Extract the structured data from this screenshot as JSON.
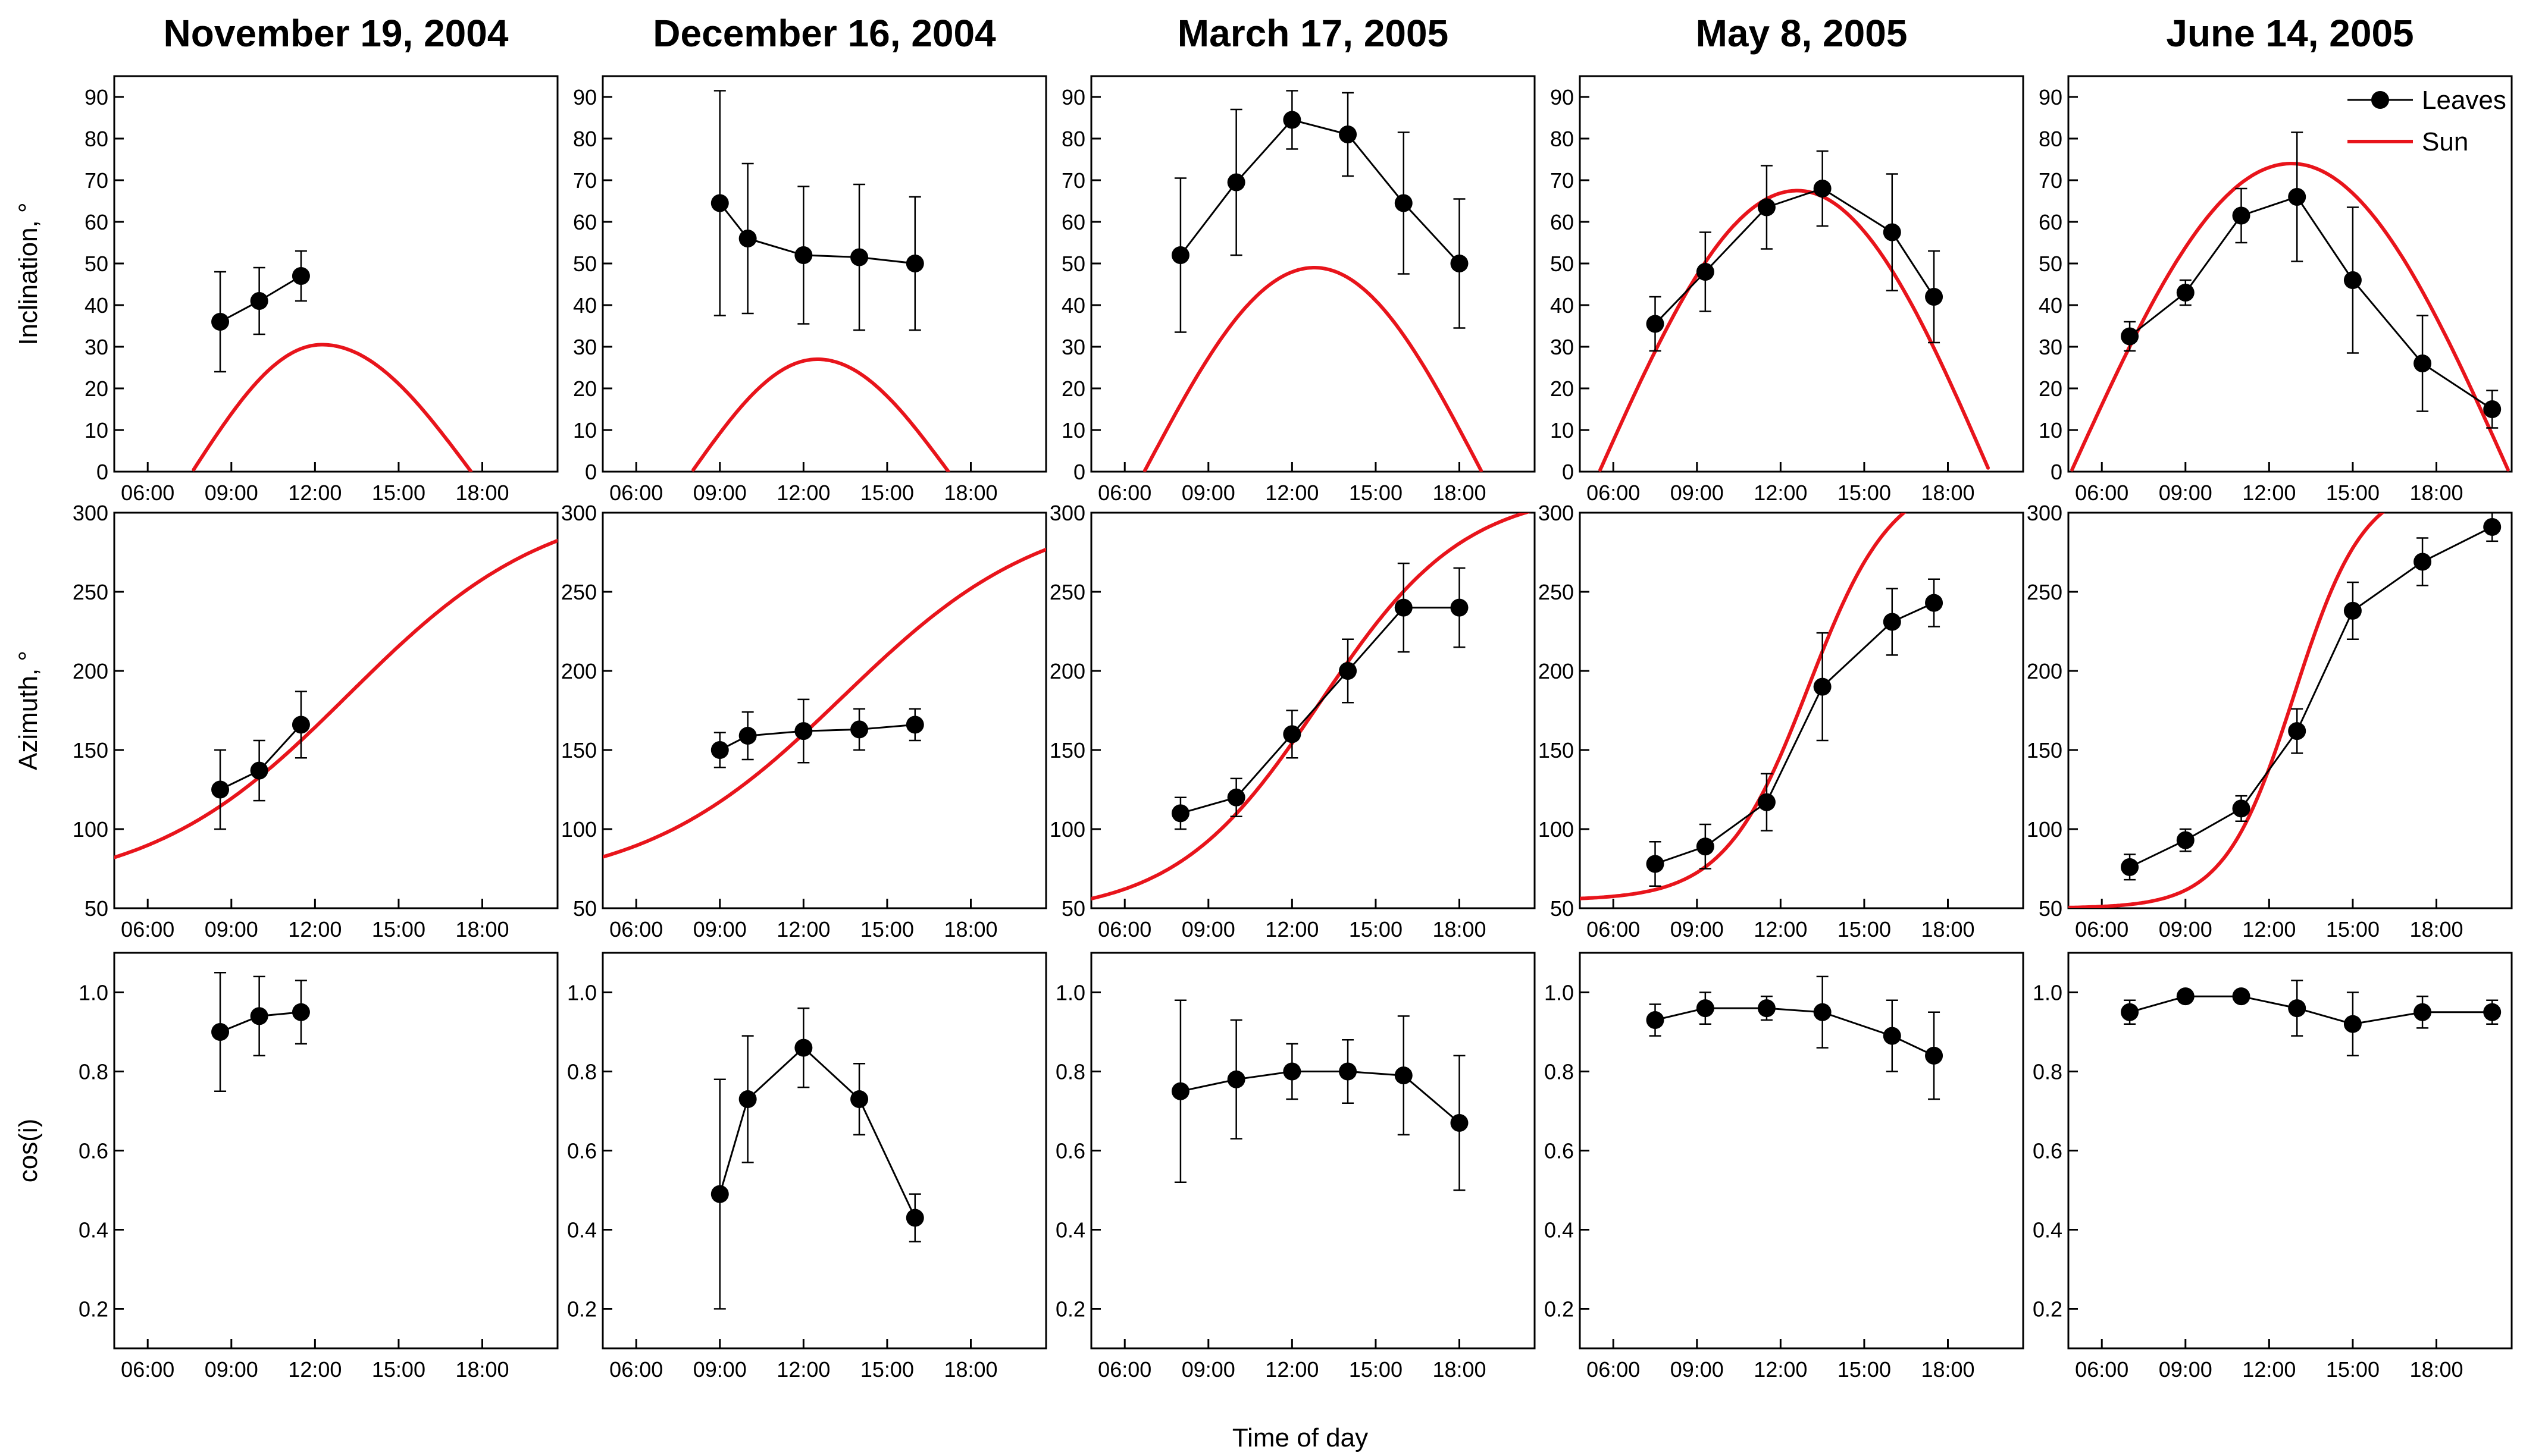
{
  "figure": {
    "xlabel": "Time of day",
    "row_ylabels": [
      "Inclination, °",
      "Azimuth, °",
      "cos(i)"
    ],
    "columns": [
      "November 19, 2004",
      "December 16, 2004",
      "March 17, 2005",
      "May 8, 2005",
      "June 14, 2005"
    ],
    "legend": [
      {
        "label": "Leaves",
        "color": "#000000",
        "marker": "filled-circle"
      },
      {
        "label": "Sun",
        "color": "#e8141b",
        "marker": "none"
      }
    ],
    "x_tick_labels": [
      "06:00",
      "09:00",
      "12:00",
      "15:00",
      "18:00"
    ],
    "colors": {
      "leaves": "#000000",
      "sun": "#e8141b"
    }
  },
  "chart_data": [
    {
      "type": "line",
      "title": "November 19, 2004",
      "panels": [
        {
          "ylabel": "Inclination, °",
          "ylim": [
            0,
            95
          ],
          "yticks": [
            0,
            10,
            20,
            30,
            40,
            50,
            60,
            70,
            80,
            90
          ],
          "xlim": [
            4.8,
            20.7
          ],
          "xticks": [
            6,
            9,
            12,
            15,
            18
          ],
          "leaves": {
            "x": [
              8.6,
              10.0,
              11.5
            ],
            "y": [
              36,
              41,
              47
            ],
            "err": [
              12,
              8,
              6
            ]
          },
          "sun": {
            "type": "bell",
            "peak_x": 12.25,
            "peak_y": 30.5,
            "rise": 7.6,
            "set": 17.6
          }
        },
        {
          "ylabel": "Azimuth, °",
          "ylim": [
            50,
            300
          ],
          "yticks": [
            50,
            100,
            150,
            200,
            250,
            300
          ],
          "xlim": [
            4.8,
            20.7
          ],
          "xticks": [
            6,
            9,
            12,
            15,
            18
          ],
          "leaves": {
            "x": [
              8.6,
              10.0,
              11.5
            ],
            "y": [
              125,
              137,
              166
            ],
            "err": [
              25,
              19,
              21
            ]
          },
          "sun": {
            "type": "sigmoid",
            "low": 60,
            "high": 310,
            "mid_x": 13.2,
            "scale": 3.6
          }
        },
        {
          "ylabel": "cos(i)",
          "ylim": [
            0.1,
            1.1
          ],
          "yticks": [
            0.2,
            0.4,
            0.6,
            0.8,
            1.0
          ],
          "xlim": [
            4.8,
            20.7
          ],
          "xticks": [
            6,
            9,
            12,
            15,
            18
          ],
          "leaves": {
            "x": [
              8.6,
              10.0,
              11.5
            ],
            "y": [
              0.9,
              0.94,
              0.95
            ],
            "err": [
              0.15,
              0.1,
              0.08
            ]
          }
        }
      ]
    },
    {
      "type": "line",
      "title": "December 16, 2004",
      "panels": [
        {
          "ylabel": "Inclination, °",
          "ylim": [
            0,
            95
          ],
          "yticks": [
            0,
            10,
            20,
            30,
            40,
            50,
            60,
            70,
            80,
            90
          ],
          "xlim": [
            4.8,
            20.7
          ],
          "xticks": [
            6,
            9,
            12,
            15,
            18
          ],
          "leaves": {
            "x": [
              9.0,
              10.0,
              12.0,
              14.0,
              16.0
            ],
            "y": [
              64.5,
              56,
              52,
              51.5,
              50
            ],
            "err": [
              27,
              18,
              16.5,
              17.5,
              16
            ]
          },
          "sun": {
            "type": "bell",
            "peak_x": 12.5,
            "peak_y": 27,
            "rise": 8.0,
            "set": 17.2
          }
        },
        {
          "ylabel": "Azimuth, °",
          "ylim": [
            50,
            300
          ],
          "yticks": [
            50,
            100,
            150,
            200,
            250,
            300
          ],
          "xlim": [
            4.8,
            20.7
          ],
          "xticks": [
            6,
            9,
            12,
            15,
            18
          ],
          "leaves": {
            "x": [
              9.0,
              10.0,
              12.0,
              14.0,
              16.0
            ],
            "y": [
              150,
              159,
              162,
              163,
              166
            ],
            "err": [
              11,
              15,
              20,
              13,
              10
            ]
          },
          "sun": {
            "type": "sigmoid",
            "low": 62,
            "high": 305,
            "mid_x": 13.4,
            "scale": 3.6
          }
        },
        {
          "ylabel": "cos(i)",
          "ylim": [
            0.1,
            1.1
          ],
          "yticks": [
            0.2,
            0.4,
            0.6,
            0.8,
            1.0
          ],
          "xlim": [
            4.8,
            20.7
          ],
          "xticks": [
            6,
            9,
            12,
            15,
            18
          ],
          "leaves": {
            "x": [
              9.0,
              10.0,
              12.0,
              14.0,
              16.0
            ],
            "y": [
              0.49,
              0.73,
              0.86,
              0.73,
              0.43
            ],
            "err": [
              0.29,
              0.16,
              0.1,
              0.09,
              0.06
            ]
          }
        }
      ]
    },
    {
      "type": "line",
      "title": "March 17, 2005",
      "panels": [
        {
          "ylabel": "Inclination, °",
          "ylim": [
            0,
            95
          ],
          "yticks": [
            0,
            10,
            20,
            30,
            40,
            50,
            60,
            70,
            80,
            90
          ],
          "xlim": [
            4.8,
            20.7
          ],
          "xticks": [
            6,
            9,
            12,
            15,
            18
          ],
          "leaves": {
            "x": [
              8.0,
              10.0,
              12.0,
              14.0,
              16.0,
              18.0
            ],
            "y": [
              52,
              69.5,
              84.5,
              81,
              64.5,
              50
            ],
            "err": [
              18.5,
              17.5,
              7,
              10,
              17,
              15.5
            ]
          },
          "sun": {
            "type": "bell",
            "peak_x": 12.8,
            "peak_y": 49,
            "rise": 6.7,
            "set": 18.8
          }
        },
        {
          "ylabel": "Azimuth, °",
          "ylim": [
            50,
            300
          ],
          "yticks": [
            50,
            100,
            150,
            200,
            250,
            300
          ],
          "xlim": [
            4.8,
            20.7
          ],
          "xticks": [
            6,
            9,
            12,
            15,
            18
          ],
          "leaves": {
            "x": [
              8.0,
              10.0,
              12.0,
              14.0,
              16.0,
              18.0
            ],
            "y": [
              110,
              120,
              160,
              200,
              240,
              240
            ],
            "err": [
              10,
              12,
              15,
              20,
              28,
              25
            ]
          },
          "sun": {
            "type": "sigmoid",
            "low": 45,
            "high": 315,
            "mid_x": 13.0,
            "scale": 2.6
          }
        },
        {
          "ylabel": "cos(i)",
          "ylim": [
            0.1,
            1.1
          ],
          "yticks": [
            0.2,
            0.4,
            0.6,
            0.8,
            1.0
          ],
          "xlim": [
            4.8,
            20.7
          ],
          "xticks": [
            6,
            9,
            12,
            15,
            18
          ],
          "leaves": {
            "x": [
              8.0,
              10.0,
              12.0,
              14.0,
              16.0,
              18.0
            ],
            "y": [
              0.75,
              0.78,
              0.8,
              0.8,
              0.79,
              0.67
            ],
            "err": [
              0.23,
              0.15,
              0.07,
              0.08,
              0.15,
              0.17
            ]
          }
        }
      ]
    },
    {
      "type": "line",
      "title": "May 8, 2005",
      "panels": [
        {
          "ylabel": "Inclination, °",
          "ylim": [
            0,
            95
          ],
          "yticks": [
            0,
            10,
            20,
            30,
            40,
            50,
            60,
            70,
            80,
            90
          ],
          "xlim": [
            4.8,
            20.7
          ],
          "xticks": [
            6,
            9,
            12,
            15,
            18
          ],
          "leaves": {
            "x": [
              7.5,
              9.3,
              11.5,
              13.5,
              16.0,
              17.5
            ],
            "y": [
              35.5,
              48,
              63.5,
              68,
              57.5,
              42
            ],
            "err": [
              6.5,
              9.5,
              10,
              9,
              14,
              11
            ]
          },
          "sun": {
            "type": "bell",
            "peak_x": 12.6,
            "peak_y": 67.5,
            "rise": 5.5,
            "set": 19.5
          }
        },
        {
          "ylabel": "Azimuth, °",
          "ylim": [
            50,
            300
          ],
          "yticks": [
            50,
            100,
            150,
            200,
            250,
            300
          ],
          "xlim": [
            4.8,
            20.7
          ],
          "xticks": [
            6,
            9,
            12,
            15,
            18
          ],
          "leaves": {
            "x": [
              7.5,
              9.3,
              11.5,
              13.5,
              16.0,
              17.5
            ],
            "y": [
              78,
              89,
              117,
              190,
              231,
              243
            ],
            "err": [
              14,
              14,
              18,
              34,
              21,
              15
            ]
          },
          "sun": {
            "type": "sigmoid",
            "low": 55,
            "high": 325,
            "mid_x": 13.0,
            "scale": 1.5
          }
        },
        {
          "ylabel": "cos(i)",
          "ylim": [
            0.1,
            1.1
          ],
          "yticks": [
            0.2,
            0.4,
            0.6,
            0.8,
            1.0
          ],
          "xlim": [
            4.8,
            20.7
          ],
          "xticks": [
            6,
            9,
            12,
            15,
            18
          ],
          "leaves": {
            "x": [
              7.5,
              9.3,
              11.5,
              13.5,
              16.0,
              17.5
            ],
            "y": [
              0.93,
              0.96,
              0.96,
              0.95,
              0.89,
              0.84
            ],
            "err": [
              0.04,
              0.04,
              0.03,
              0.09,
              0.09,
              0.11
            ]
          }
        }
      ]
    },
    {
      "type": "line",
      "title": "June 14, 2005",
      "panels": [
        {
          "ylabel": "Inclination, °",
          "ylim": [
            0,
            95
          ],
          "yticks": [
            0,
            10,
            20,
            30,
            40,
            50,
            60,
            70,
            80,
            90
          ],
          "xlim": [
            4.8,
            20.7
          ],
          "xticks": [
            6,
            9,
            12,
            15,
            18
          ],
          "leaves": {
            "x": [
              7.0,
              9.0,
              11.0,
              13.0,
              15.0,
              17.5,
              20.0
            ],
            "y": [
              32.5,
              43,
              61.5,
              66,
              46,
              26,
              15
            ],
            "err": [
              3.5,
              3,
              6.5,
              15.5,
              17.5,
              11.5,
              4.5
            ]
          },
          "sun": {
            "type": "bell",
            "peak_x": 12.8,
            "peak_y": 74,
            "rise": 4.9,
            "set": 20.6
          }
        },
        {
          "ylabel": "Azimuth, °",
          "ylim": [
            50,
            300
          ],
          "yticks": [
            50,
            100,
            150,
            200,
            250,
            300
          ],
          "xlim": [
            4.8,
            20.7
          ],
          "xticks": [
            6,
            9,
            12,
            15,
            18
          ],
          "leaves": {
            "x": [
              7.0,
              9.0,
              11.0,
              13.0,
              15.0,
              17.5,
              20.0
            ],
            "y": [
              76,
              93,
              113,
              162,
              238,
              269,
              291
            ],
            "err": [
              8,
              7,
              8,
              14,
              18,
              15,
              9
            ]
          },
          "sun": {
            "type": "sigmoid",
            "low": 50,
            "high": 320,
            "mid_x": 12.9,
            "scale": 1.25
          }
        },
        {
          "ylabel": "cos(i)",
          "ylim": [
            0.1,
            1.1
          ],
          "yticks": [
            0.2,
            0.4,
            0.6,
            0.8,
            1.0
          ],
          "xlim": [
            4.8,
            20.7
          ],
          "xticks": [
            6,
            9,
            12,
            15,
            18
          ],
          "leaves": {
            "x": [
              7.0,
              9.0,
              11.0,
              13.0,
              15.0,
              17.5,
              20.0
            ],
            "y": [
              0.95,
              0.99,
              0.99,
              0.96,
              0.92,
              0.95,
              0.95
            ],
            "err": [
              0.03,
              0.01,
              0.01,
              0.07,
              0.08,
              0.04,
              0.03
            ]
          }
        }
      ]
    }
  ]
}
